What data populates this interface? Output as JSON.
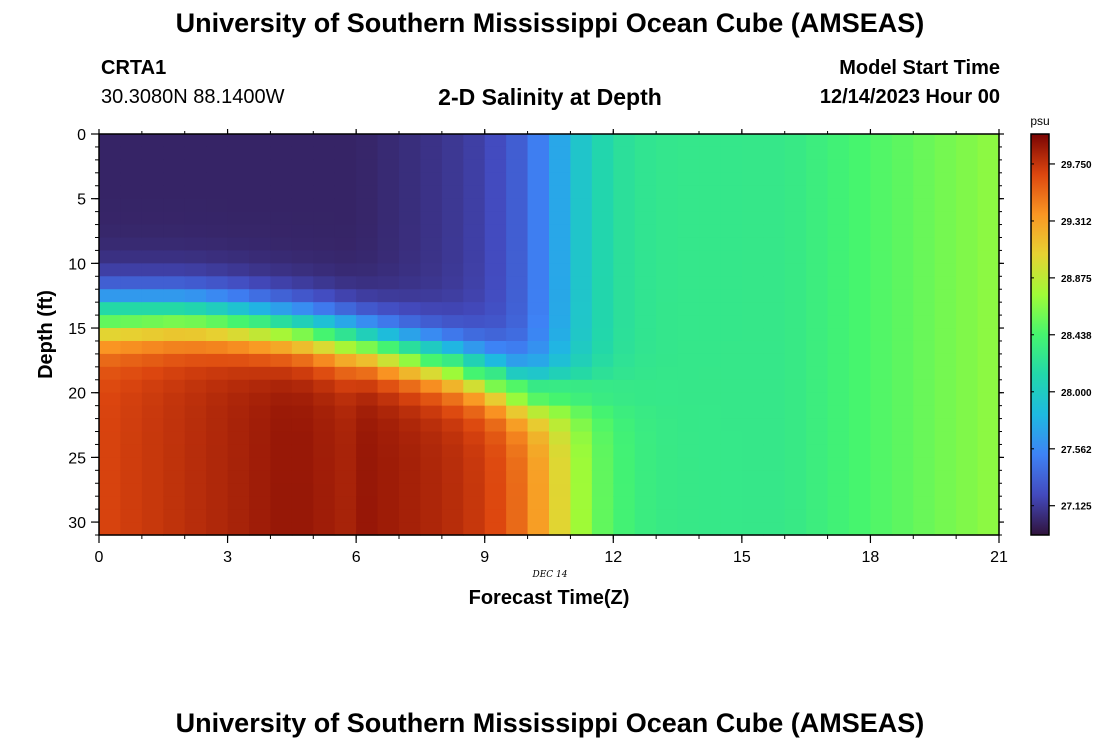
{
  "header": {
    "title": "University of Southern Mississippi Ocean Cube (AMSEAS)",
    "station": "CRTA1",
    "coordinates": "30.3080N  88.1400W",
    "subtitle": "2-D Salinity at Depth",
    "model_start_label": "Model Start Time",
    "model_start_value": "12/14/2023 Hour 00"
  },
  "footer": {
    "title": "University of Southern Mississippi Ocean Cube (AMSEAS)"
  },
  "chart_data": {
    "type": "heatmap",
    "title": "2-D Salinity at Depth",
    "xlabel": "Forecast Time(Z)",
    "ylabel": "Depth (ft)",
    "date_annotation": "DEC 14",
    "xlim": [
      0,
      21
    ],
    "ylim": [
      0,
      31
    ],
    "x_ticks": [
      "0",
      "3",
      "6",
      "9",
      "12",
      "15",
      "18",
      "21"
    ],
    "y_ticks": [
      "0",
      "5",
      "10",
      "15",
      "20",
      "25",
      "30"
    ],
    "colorbar": {
      "units": "psu",
      "min": 26.9,
      "max": 29.98,
      "ticks": [
        "27.125",
        "27.562",
        "28.000",
        "28.438",
        "28.875",
        "29.312",
        "29.750"
      ]
    },
    "colors": {
      "frame": "#000000",
      "background": "#ffffff"
    },
    "salinity_profiles": {
      "surface_layer_value": 27.0,
      "bottom_layer_value": 29.9,
      "late_forecast_value": 28.3,
      "end_forecast_value": 28.7,
      "halocline_depth_ft": [
        14,
        14,
        14,
        14.3,
        14.8,
        15.3,
        16,
        16.8,
        17.6,
        18.6,
        20
      ]
    }
  }
}
